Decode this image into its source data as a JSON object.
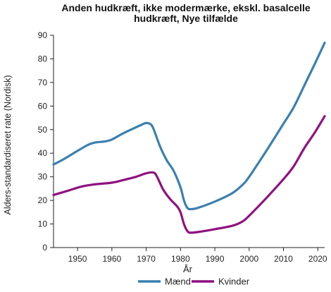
{
  "chart_data": {
    "type": "line",
    "title": "Anden hudkræft, ikke modermærke, ekskl. basalcelle hudkræft, Nye tilfælde",
    "xlabel": "År",
    "ylabel": "Alders-standardiseret rate (Nordisk)",
    "xlim": [
      1943,
      2022
    ],
    "ylim": [
      0,
      90
    ],
    "x_ticks": [
      "1950",
      "1960",
      "1970",
      "1980",
      "1990",
      "2000",
      "2010",
      "2020"
    ],
    "y_ticks": [
      "0",
      "10",
      "20",
      "30",
      "40",
      "50",
      "60",
      "70",
      "80",
      "90"
    ],
    "grid": false,
    "legend_position": "bottom",
    "series": [
      {
        "name": "Mænd",
        "color": "#3b80b0",
        "points": [
          [
            1943,
            35.2
          ],
          [
            1946,
            37.5
          ],
          [
            1950,
            41
          ],
          [
            1953,
            43.5
          ],
          [
            1955,
            44.5
          ],
          [
            1958,
            45
          ],
          [
            1960,
            45.8
          ],
          [
            1963,
            48.2
          ],
          [
            1966,
            50.3
          ],
          [
            1969,
            52.3
          ],
          [
            1970,
            52.8
          ],
          [
            1971,
            52.5
          ],
          [
            1972,
            50.8
          ],
          [
            1974,
            43
          ],
          [
            1976,
            37
          ],
          [
            1978,
            32.5
          ],
          [
            1980,
            25.5
          ],
          [
            1981,
            20
          ],
          [
            1982,
            16.8
          ],
          [
            1983,
            16.3
          ],
          [
            1985,
            16.8
          ],
          [
            1990,
            19.5
          ],
          [
            1995,
            23
          ],
          [
            1998,
            26.5
          ],
          [
            2000,
            30
          ],
          [
            2005,
            41
          ],
          [
            2010,
            52.5
          ],
          [
            2013,
            59.5
          ],
          [
            2016,
            68.5
          ],
          [
            2019,
            77.5
          ],
          [
            2022,
            86.8
          ]
        ]
      },
      {
        "name": "Kvinder",
        "color": "#8f127f",
        "points": [
          [
            1943,
            22.3
          ],
          [
            1947,
            24
          ],
          [
            1951,
            25.8
          ],
          [
            1955,
            26.8
          ],
          [
            1960,
            27.5
          ],
          [
            1963,
            28.5
          ],
          [
            1967,
            30
          ],
          [
            1970,
            31.5
          ],
          [
            1972,
            31.8
          ],
          [
            1973,
            30.5
          ],
          [
            1975,
            24.5
          ],
          [
            1977,
            20.5
          ],
          [
            1979,
            17.5
          ],
          [
            1980,
            15
          ],
          [
            1981,
            10
          ],
          [
            1982,
            7
          ],
          [
            1983,
            6.3
          ],
          [
            1986,
            6.8
          ],
          [
            1990,
            7.8
          ],
          [
            1995,
            9.2
          ],
          [
            1998,
            11
          ],
          [
            2000,
            13.5
          ],
          [
            2005,
            21
          ],
          [
            2010,
            29
          ],
          [
            2013,
            34.5
          ],
          [
            2016,
            42
          ],
          [
            2019,
            48.5
          ],
          [
            2022,
            55.7
          ]
        ]
      }
    ]
  }
}
